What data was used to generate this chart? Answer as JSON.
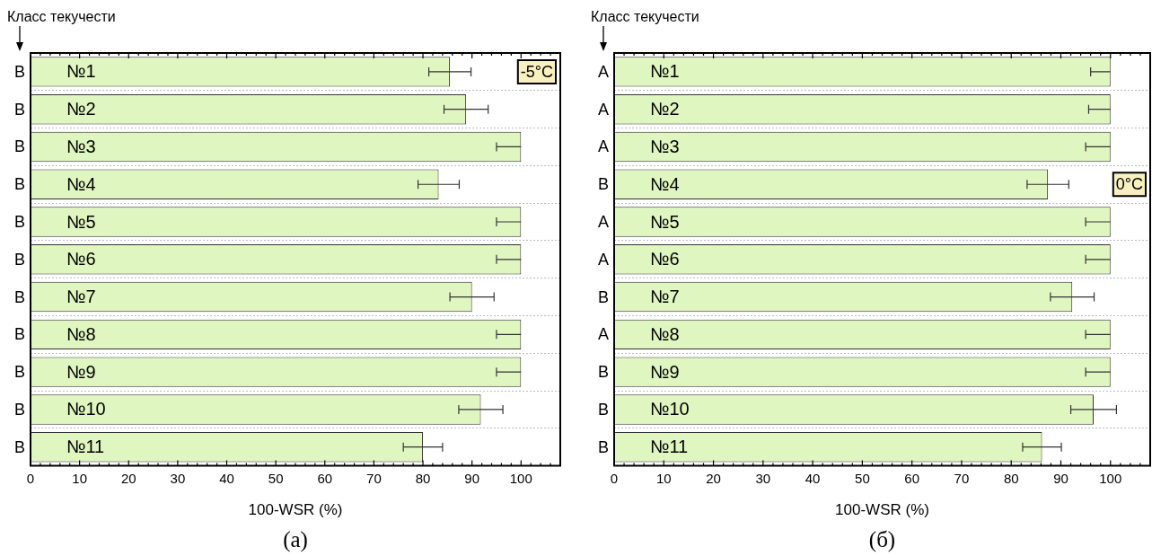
{
  "chart_data": [
    {
      "type": "bar",
      "orientation": "horizontal",
      "title": "(а)",
      "xlabel": "100-WSR (%)",
      "ylabel": "Класс текучести",
      "categories": [
        "№1",
        "№2",
        "№3",
        "№4",
        "№5",
        "№6",
        "№7",
        "№8",
        "№9",
        "№10",
        "№11"
      ],
      "values": [
        85.5,
        88.8,
        100,
        83.2,
        100,
        100,
        90,
        100,
        100,
        91.8,
        80
      ],
      "errors": [
        4.3,
        4.5,
        [
          95,
          100
        ],
        4.2,
        [
          95,
          100
        ],
        [
          95,
          100
        ],
        4.5,
        [
          95,
          100
        ],
        [
          95,
          100
        ],
        4.5,
        4
      ],
      "color": "#e0f6c0",
      "xlim": [
        0,
        108
      ],
      "xticks": [
        0,
        {
          "value": 2,
          "label": null
        },
        {
          "value": 4,
          "label": null
        },
        {
          "value": 6,
          "label": null
        },
        {
          "value": 8,
          "label": null
        },
        10,
        {
          "value": 12,
          "label": null
        },
        {
          "value": 14,
          "label": null
        },
        {
          "value": 16,
          "label": null
        },
        {
          "value": 18,
          "label": null
        },
        20,
        {
          "value": 22,
          "label": null
        },
        {
          "value": 24,
          "label": null
        },
        {
          "value": 26,
          "label": null
        },
        {
          "value": 28,
          "label": null
        },
        30,
        {
          "value": 32,
          "label": null
        },
        {
          "value": 34,
          "label": null
        },
        {
          "value": 36,
          "label": null
        },
        {
          "value": 38,
          "label": null
        },
        40,
        {
          "value": 42,
          "label": null
        },
        {
          "value": 44,
          "label": null
        },
        {
          "value": 46,
          "label": null
        },
        {
          "value": 48,
          "label": null
        },
        50,
        {
          "value": 52,
          "label": null
        },
        {
          "value": 54,
          "label": null
        },
        {
          "value": 56,
          "label": null
        },
        {
          "value": 58,
          "label": null
        },
        60,
        {
          "value": 62,
          "label": null
        },
        {
          "value": 64,
          "label": null
        },
        {
          "value": 66,
          "label": null
        },
        {
          "value": 68,
          "label": null
        },
        70,
        {
          "value": 72,
          "label": null
        },
        {
          "value": 74,
          "label": null
        },
        {
          "value": 76,
          "label": null
        },
        {
          "value": 78,
          "label": null
        },
        80,
        {
          "value": 82,
          "label": null
        },
        {
          "value": 84,
          "label": null
        },
        {
          "value": 86,
          "label": null
        },
        {
          "value": 88,
          "label": null
        },
        90,
        {
          "value": 92,
          "label": null
        },
        {
          "value": 94,
          "label": null
        },
        {
          "value": 96,
          "label": null
        },
        {
          "value": 98,
          "label": null
        },
        100,
        {
          "value": 102,
          "label": null
        },
        {
          "value": 104,
          "label": null
        },
        {
          "value": 106,
          "label": null
        }
      ],
      "grid": "y",
      "annotations": [
        "B",
        "B",
        "B",
        "B",
        "B",
        "B",
        "B",
        "B",
        "B",
        "B",
        "B",
        "-5°C"
      ]
    },
    {
      "type": "bar",
      "orientation": "horizontal",
      "title": "(б)",
      "xlabel": "100-WSR (%)",
      "ylabel": "Класс текучести",
      "categories": [
        "№1",
        "№2",
        "№3",
        "№4",
        "№5",
        "№6",
        "№7",
        "№8",
        "№9",
        "№10",
        "№11"
      ],
      "values": [
        100,
        100,
        100,
        87.4,
        100,
        100,
        92.3,
        100,
        100,
        96.6,
        86.2
      ],
      "errors": [
        [
          96,
          100
        ],
        [
          95.6,
          100
        ],
        [
          95,
          100
        ],
        4.2,
        [
          95,
          100
        ],
        [
          95,
          100
        ],
        4.4,
        [
          95,
          100
        ],
        [
          95,
          100
        ],
        4.6,
        3.9
      ],
      "color": "#e0f6c0",
      "xlim": [
        0,
        108
      ],
      "xticks": [
        0,
        {
          "value": 2,
          "label": null
        },
        {
          "value": 4,
          "label": null
        },
        {
          "value": 6,
          "label": null
        },
        {
          "value": 8,
          "label": null
        },
        10,
        {
          "value": 12,
          "label": null
        },
        {
          "value": 14,
          "label": null
        },
        {
          "value": 16,
          "label": null
        },
        {
          "value": 18,
          "label": null
        },
        20,
        {
          "value": 22,
          "label": null
        },
        {
          "value": 24,
          "label": null
        },
        {
          "value": 26,
          "label": null
        },
        {
          "value": 28,
          "label": null
        },
        30,
        {
          "value": 32,
          "label": null
        },
        {
          "value": 34,
          "label": null
        },
        {
          "value": 36,
          "label": null
        },
        {
          "value": 38,
          "label": null
        },
        40,
        {
          "value": 42,
          "label": null
        },
        {
          "value": 44,
          "label": null
        },
        {
          "value": 46,
          "label": null
        },
        {
          "value": 48,
          "label": null
        },
        50,
        {
          "value": 52,
          "label": null
        },
        {
          "value": 54,
          "label": null
        },
        {
          "value": 56,
          "label": null
        },
        {
          "value": 58,
          "label": null
        },
        60,
        {
          "value": 62,
          "label": null
        },
        {
          "value": 64,
          "label": null
        },
        {
          "value": 66,
          "label": null
        },
        {
          "value": 68,
          "label": null
        },
        70,
        {
          "value": 72,
          "label": null
        },
        {
          "value": 74,
          "label": null
        },
        {
          "value": 76,
          "label": null
        },
        {
          "value": 78,
          "label": null
        },
        80,
        {
          "value": 82,
          "label": null
        },
        {
          "value": 84,
          "label": null
        },
        {
          "value": 86,
          "label": null
        },
        {
          "value": 88,
          "label": null
        },
        90,
        {
          "value": 92,
          "label": null
        },
        {
          "value": 94,
          "label": null
        },
        {
          "value": 96,
          "label": null
        },
        {
          "value": 98,
          "label": null
        },
        100,
        {
          "value": 102,
          "label": null
        },
        {
          "value": 104,
          "label": null
        },
        {
          "value": 106,
          "label": null
        }
      ],
      "grid": "y",
      "annotations": [
        "A",
        "A",
        "A",
        "B",
        "A",
        "A",
        "B",
        "A",
        "B",
        "B",
        "B",
        "0°C"
      ]
    }
  ]
}
